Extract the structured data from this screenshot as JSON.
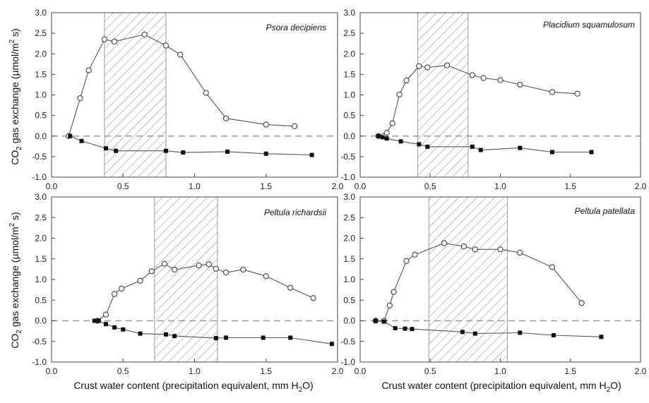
{
  "chart_data": [
    {
      "type": "line",
      "title": "Psora decipiens",
      "xlim": [
        0.0,
        2.0
      ],
      "ylim": [
        -1.0,
        3.0
      ],
      "shaded_x_range": [
        0.37,
        0.8
      ],
      "series": [
        {
          "marker": "open-circle",
          "x": [
            0.12,
            0.2,
            0.26,
            0.37,
            0.44,
            0.65,
            0.8,
            0.9,
            1.08,
            1.22,
            1.5,
            1.7
          ],
          "y": [
            0.0,
            0.92,
            1.6,
            2.35,
            2.3,
            2.47,
            2.2,
            1.98,
            1.05,
            0.43,
            0.28,
            0.24
          ]
        },
        {
          "marker": "filled-square",
          "x": [
            0.13,
            0.21,
            0.38,
            0.45,
            0.8,
            0.92,
            1.23,
            1.5,
            1.82
          ],
          "y": [
            0.0,
            -0.12,
            -0.3,
            -0.36,
            -0.36,
            -0.4,
            -0.38,
            -0.43,
            -0.46
          ]
        }
      ]
    },
    {
      "type": "line",
      "title": "Placidium squamulosum",
      "xlim": [
        0.0,
        2.0
      ],
      "ylim": [
        -1.0,
        3.0
      ],
      "shaded_x_range": [
        0.41,
        0.77
      ],
      "series": [
        {
          "marker": "open-circle",
          "x": [
            0.13,
            0.17,
            0.19,
            0.23,
            0.28,
            0.33,
            0.42,
            0.48,
            0.62,
            0.8,
            0.88,
            1.0,
            1.14,
            1.37,
            1.55
          ],
          "y": [
            0.0,
            0.0,
            0.08,
            0.31,
            1.01,
            1.35,
            1.7,
            1.67,
            1.72,
            1.48,
            1.41,
            1.36,
            1.25,
            1.07,
            1.03
          ]
        },
        {
          "marker": "filled-square",
          "x": [
            0.13,
            0.16,
            0.19,
            0.29,
            0.42,
            0.48,
            0.8,
            0.86,
            1.14,
            1.37,
            1.65
          ],
          "y": [
            0.0,
            -0.03,
            -0.06,
            -0.13,
            -0.2,
            -0.26,
            -0.26,
            -0.34,
            -0.29,
            -0.39,
            -0.39
          ]
        }
      ]
    },
    {
      "type": "line",
      "title": "Peltula richardsii",
      "xlim": [
        0.0,
        2.0
      ],
      "ylim": [
        -1.0,
        3.0
      ],
      "shaded_x_range": [
        0.72,
        1.16
      ],
      "series": [
        {
          "marker": "open-circle",
          "x": [
            0.32,
            0.38,
            0.44,
            0.49,
            0.62,
            0.7,
            0.79,
            0.86,
            1.03,
            1.1,
            1.15,
            1.22,
            1.34,
            1.5,
            1.67,
            1.83
          ],
          "y": [
            0.0,
            0.15,
            0.65,
            0.78,
            0.97,
            1.2,
            1.38,
            1.24,
            1.34,
            1.37,
            1.26,
            1.17,
            1.24,
            1.08,
            0.8,
            0.55
          ]
        },
        {
          "marker": "filled-square",
          "x": [
            0.3,
            0.33,
            0.38,
            0.44,
            0.5,
            0.62,
            0.8,
            0.86,
            1.15,
            1.22,
            1.48,
            1.67,
            1.96
          ],
          "y": [
            0.0,
            0.0,
            -0.08,
            -0.16,
            -0.21,
            -0.31,
            -0.33,
            -0.37,
            -0.42,
            -0.41,
            -0.41,
            -0.41,
            -0.56
          ]
        }
      ]
    },
    {
      "type": "line",
      "title": "Peltula patellata",
      "xlim": [
        0.0,
        2.0
      ],
      "ylim": [
        -1.0,
        3.0
      ],
      "shaded_x_range": [
        0.49,
        1.05
      ],
      "series": [
        {
          "marker": "open-circle",
          "x": [
            0.11,
            0.17,
            0.21,
            0.24,
            0.33,
            0.39,
            0.6,
            0.74,
            0.82,
            1.0,
            1.14,
            1.37,
            1.58
          ],
          "y": [
            0.0,
            0.0,
            0.37,
            0.7,
            1.45,
            1.6,
            1.88,
            1.8,
            1.73,
            1.73,
            1.65,
            1.3,
            0.43
          ]
        },
        {
          "marker": "filled-square",
          "x": [
            0.11,
            0.17,
            0.25,
            0.32,
            0.37,
            0.73,
            0.82,
            1.14,
            1.38,
            1.72
          ],
          "y": [
            0.0,
            -0.02,
            -0.18,
            -0.19,
            -0.2,
            -0.27,
            -0.31,
            -0.29,
            -0.35,
            -0.39
          ]
        }
      ]
    }
  ],
  "axes": {
    "ylabel_prefix": "CO",
    "ylabel_sub": "2",
    "ylabel_mid": " gas exchange (µmol/m",
    "ylabel_sup": "2",
    "ylabel_suffix": " s)",
    "xlabel_prefix": "Crust water content (precipitation equivalent, mm H",
    "xlabel_sub": "2",
    "xlabel_suffix": "O)",
    "yticks": [
      "-1.0",
      "-0.5",
      "0.0",
      "0.5",
      "1.0",
      "1.5",
      "2.0",
      "2.5",
      "3.0"
    ],
    "xticks": [
      "0.0",
      "0.5",
      "1.0",
      "1.5",
      "2.0"
    ]
  },
  "colors": {
    "line": "#555555",
    "frame": "#444444",
    "zero_line": "#999999",
    "hatch": "#9a9a9a"
  }
}
